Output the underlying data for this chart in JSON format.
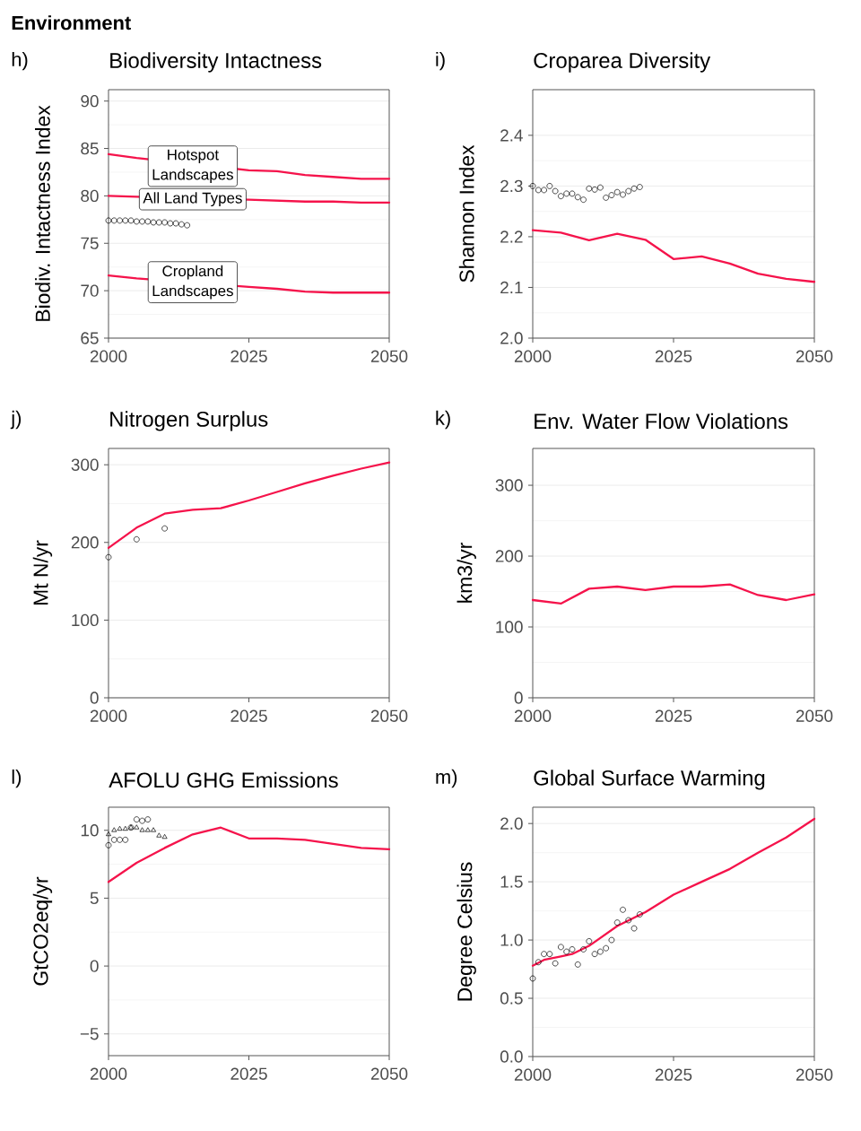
{
  "chart_data": [
    {
      "type": "line",
      "title": "Biodiversity Intactness",
      "ylabel": "Biodiv. Intactness Index",
      "xlim": [
        2000,
        2050
      ],
      "ylim": [
        65,
        91.2
      ],
      "xticks": [
        2000,
        2025,
        2050
      ],
      "yticks": [
        65,
        70,
        75,
        80,
        85,
        90
      ],
      "grid": "y",
      "annotations": [
        "Environment",
        "h)",
        "Hotspot Landscapes",
        "All Land Types",
        "Cropland Landscapes"
      ],
      "series": [
        {
          "color": "#f5134b",
          "x": [
            2000,
            2005,
            2025,
            2030,
            2035,
            2040,
            2045,
            2050
          ],
          "values": [
            84.4,
            84.0,
            82.7,
            82.6,
            82.2,
            82.0,
            81.8,
            81.8
          ]
        },
        {
          "color": "#f5134b",
          "x": [
            2000,
            2005,
            2025,
            2030,
            2035,
            2040,
            2045,
            2050
          ],
          "values": [
            80.0,
            79.9,
            79.6,
            79.5,
            79.4,
            79.4,
            79.3,
            79.3
          ]
        },
        {
          "color": "#f5134b",
          "x": [
            2000,
            2005,
            2025,
            2030,
            2035,
            2040,
            2045,
            2050
          ],
          "values": [
            71.6,
            71.3,
            70.4,
            70.2,
            69.9,
            69.8,
            69.8,
            69.8
          ]
        },
        {
          "type": "scatter",
          "marker": "circle",
          "color": "#000000",
          "x": [
            2000,
            2001,
            2002,
            2003,
            2004,
            2005,
            2006,
            2007,
            2008,
            2009,
            2010,
            2011,
            2012,
            2013,
            2014
          ],
          "values": [
            77.4,
            77.4,
            77.4,
            77.4,
            77.4,
            77.3,
            77.3,
            77.3,
            77.2,
            77.2,
            77.2,
            77.1,
            77.1,
            77.0,
            76.9
          ]
        }
      ]
    },
    {
      "type": "line",
      "title": "Croparea Diversity",
      "ylabel": "Shannon Index",
      "xlim": [
        2000,
        2050
      ],
      "ylim": [
        2.0,
        2.49
      ],
      "xticks": [
        2000,
        2025,
        2050
      ],
      "yticks": [
        {
          "value": 2.0,
          "label": "2.0"
        },
        2.1,
        2.2,
        2.3,
        2.4
      ],
      "grid": "y",
      "annotations": [
        "i)"
      ],
      "series": [
        {
          "color": "#f5134b",
          "x": [
            2000,
            2005,
            2010,
            2015,
            2020,
            2025,
            2030,
            2035,
            2040,
            2045,
            2050
          ],
          "values": [
            2.213,
            2.208,
            2.193,
            2.206,
            2.194,
            2.156,
            2.161,
            2.147,
            2.127,
            2.117,
            2.111
          ]
        },
        {
          "type": "scatter",
          "marker": "circle",
          "color": "#000000",
          "x": [
            2000,
            2001,
            2002,
            2003,
            2004,
            2005,
            2006,
            2007,
            2008,
            2009,
            2010,
            2011,
            2012,
            2013,
            2014,
            2015,
            2016,
            2017,
            2018,
            2019
          ],
          "values": [
            2.3,
            2.292,
            2.292,
            2.3,
            2.29,
            2.28,
            2.285,
            2.285,
            2.278,
            2.273,
            2.295,
            2.293,
            2.297,
            2.277,
            2.282,
            2.288,
            2.283,
            2.29,
            2.295,
            2.298
          ]
        }
      ]
    },
    {
      "type": "line",
      "title": "Nitrogen Surplus",
      "ylabel": "Mt N/yr",
      "xlim": [
        2000,
        2050
      ],
      "ylim": [
        0,
        321
      ],
      "xticks": [
        2000,
        2025,
        2050
      ],
      "yticks": [
        0,
        100,
        200,
        300
      ],
      "grid": "y",
      "annotations": [
        "j)"
      ],
      "series": [
        {
          "color": "#f5134b",
          "x": [
            2000,
            2005,
            2010,
            2015,
            2020,
            2025,
            2030,
            2035,
            2040,
            2045,
            2050
          ],
          "values": [
            193,
            219,
            237,
            242,
            244,
            254,
            265,
            276,
            286,
            295,
            303
          ]
        },
        {
          "type": "scatter",
          "marker": "circle",
          "color": "#000000",
          "x": [
            2000,
            2005,
            2010
          ],
          "values": [
            181,
            204,
            218
          ]
        }
      ]
    },
    {
      "type": "line",
      "title": "Env. Water Flow Violations",
      "ylabel": "km3/yr",
      "xlim": [
        2000,
        2050
      ],
      "ylim": [
        0,
        352
      ],
      "xticks": [
        2000,
        2025,
        2050
      ],
      "yticks": [
        0,
        100,
        200,
        300
      ],
      "grid": "y",
      "annotations": [
        "k)"
      ],
      "series": [
        {
          "color": "#f5134b",
          "x": [
            2000,
            2005,
            2010,
            2015,
            2020,
            2025,
            2030,
            2035,
            2040,
            2045,
            2050
          ],
          "values": [
            138,
            133,
            154,
            157,
            152,
            157,
            157,
            160,
            145,
            138,
            146
          ]
        }
      ]
    },
    {
      "type": "line",
      "title": "AFOLU GHG Emissions",
      "ylabel": "GtCO2eq/yr",
      "xlim": [
        2000,
        2050
      ],
      "ylim": [
        -6.6,
        11.7
      ],
      "xticks": [
        2000,
        2025,
        2050
      ],
      "yticks": [
        {
          "value": -5,
          "label": "−5"
        },
        0,
        5,
        10
      ],
      "grid": "y",
      "annotations": [
        "l)"
      ],
      "series": [
        {
          "color": "#f5134b",
          "x": [
            2000,
            2005,
            2010,
            2015,
            2020,
            2025,
            2030,
            2035,
            2040,
            2045,
            2050
          ],
          "values": [
            6.2,
            7.6,
            8.7,
            9.7,
            10.2,
            9.4,
            9.4,
            9.3,
            9.0,
            8.7,
            8.6
          ]
        },
        {
          "type": "scatter",
          "marker": "circle",
          "color": "#000000",
          "x": [
            2000,
            2001,
            2002,
            2003,
            2004,
            2005,
            2006,
            2007
          ],
          "values": [
            8.9,
            9.3,
            9.3,
            9.3,
            10.2,
            10.8,
            10.7,
            10.8
          ]
        },
        {
          "type": "scatter",
          "marker": "triangle",
          "color": "#000000",
          "x": [
            2000,
            2001,
            2002,
            2003,
            2004,
            2005,
            2006,
            2007,
            2008,
            2009,
            2010
          ],
          "values": [
            9.7,
            10.0,
            10.1,
            10.1,
            10.2,
            10.2,
            10.0,
            10.0,
            10.0,
            9.6,
            9.5
          ]
        }
      ]
    },
    {
      "type": "line",
      "title": "Global Surface Warming",
      "ylabel": "Degree Celsius",
      "xlim": [
        2000,
        2050
      ],
      "ylim": [
        0,
        2.14
      ],
      "xticks": [
        2000,
        2025,
        2050
      ],
      "yticks": [
        {
          "value": 0,
          "label": "0.0"
        },
        0.5,
        {
          "value": 1,
          "label": "1.0"
        },
        1.5,
        {
          "value": 2,
          "label": "2.0"
        }
      ],
      "grid": "y",
      "annotations": [
        "m)"
      ],
      "series": [
        {
          "color": "#f5134b",
          "x": [
            2000,
            2002,
            2005,
            2007,
            2010,
            2015,
            2020,
            2025,
            2030,
            2035,
            2040,
            2045,
            2050
          ],
          "values": [
            0.78,
            0.83,
            0.86,
            0.88,
            0.95,
            1.12,
            1.24,
            1.39,
            1.5,
            1.61,
            1.75,
            1.88,
            2.04
          ]
        },
        {
          "type": "scatter",
          "marker": "circle",
          "color": "#000000",
          "x": [
            2000,
            2001,
            2002,
            2003,
            2004,
            2005,
            2006,
            2007,
            2008,
            2009,
            2010,
            2011,
            2012,
            2013,
            2014,
            2015,
            2016,
            2017,
            2018,
            2019
          ],
          "values": [
            0.67,
            0.81,
            0.88,
            0.88,
            0.8,
            0.94,
            0.9,
            0.92,
            0.79,
            0.92,
            0.99,
            0.88,
            0.9,
            0.93,
            1.0,
            1.15,
            1.26,
            1.17,
            1.1,
            1.22
          ]
        }
      ]
    }
  ]
}
